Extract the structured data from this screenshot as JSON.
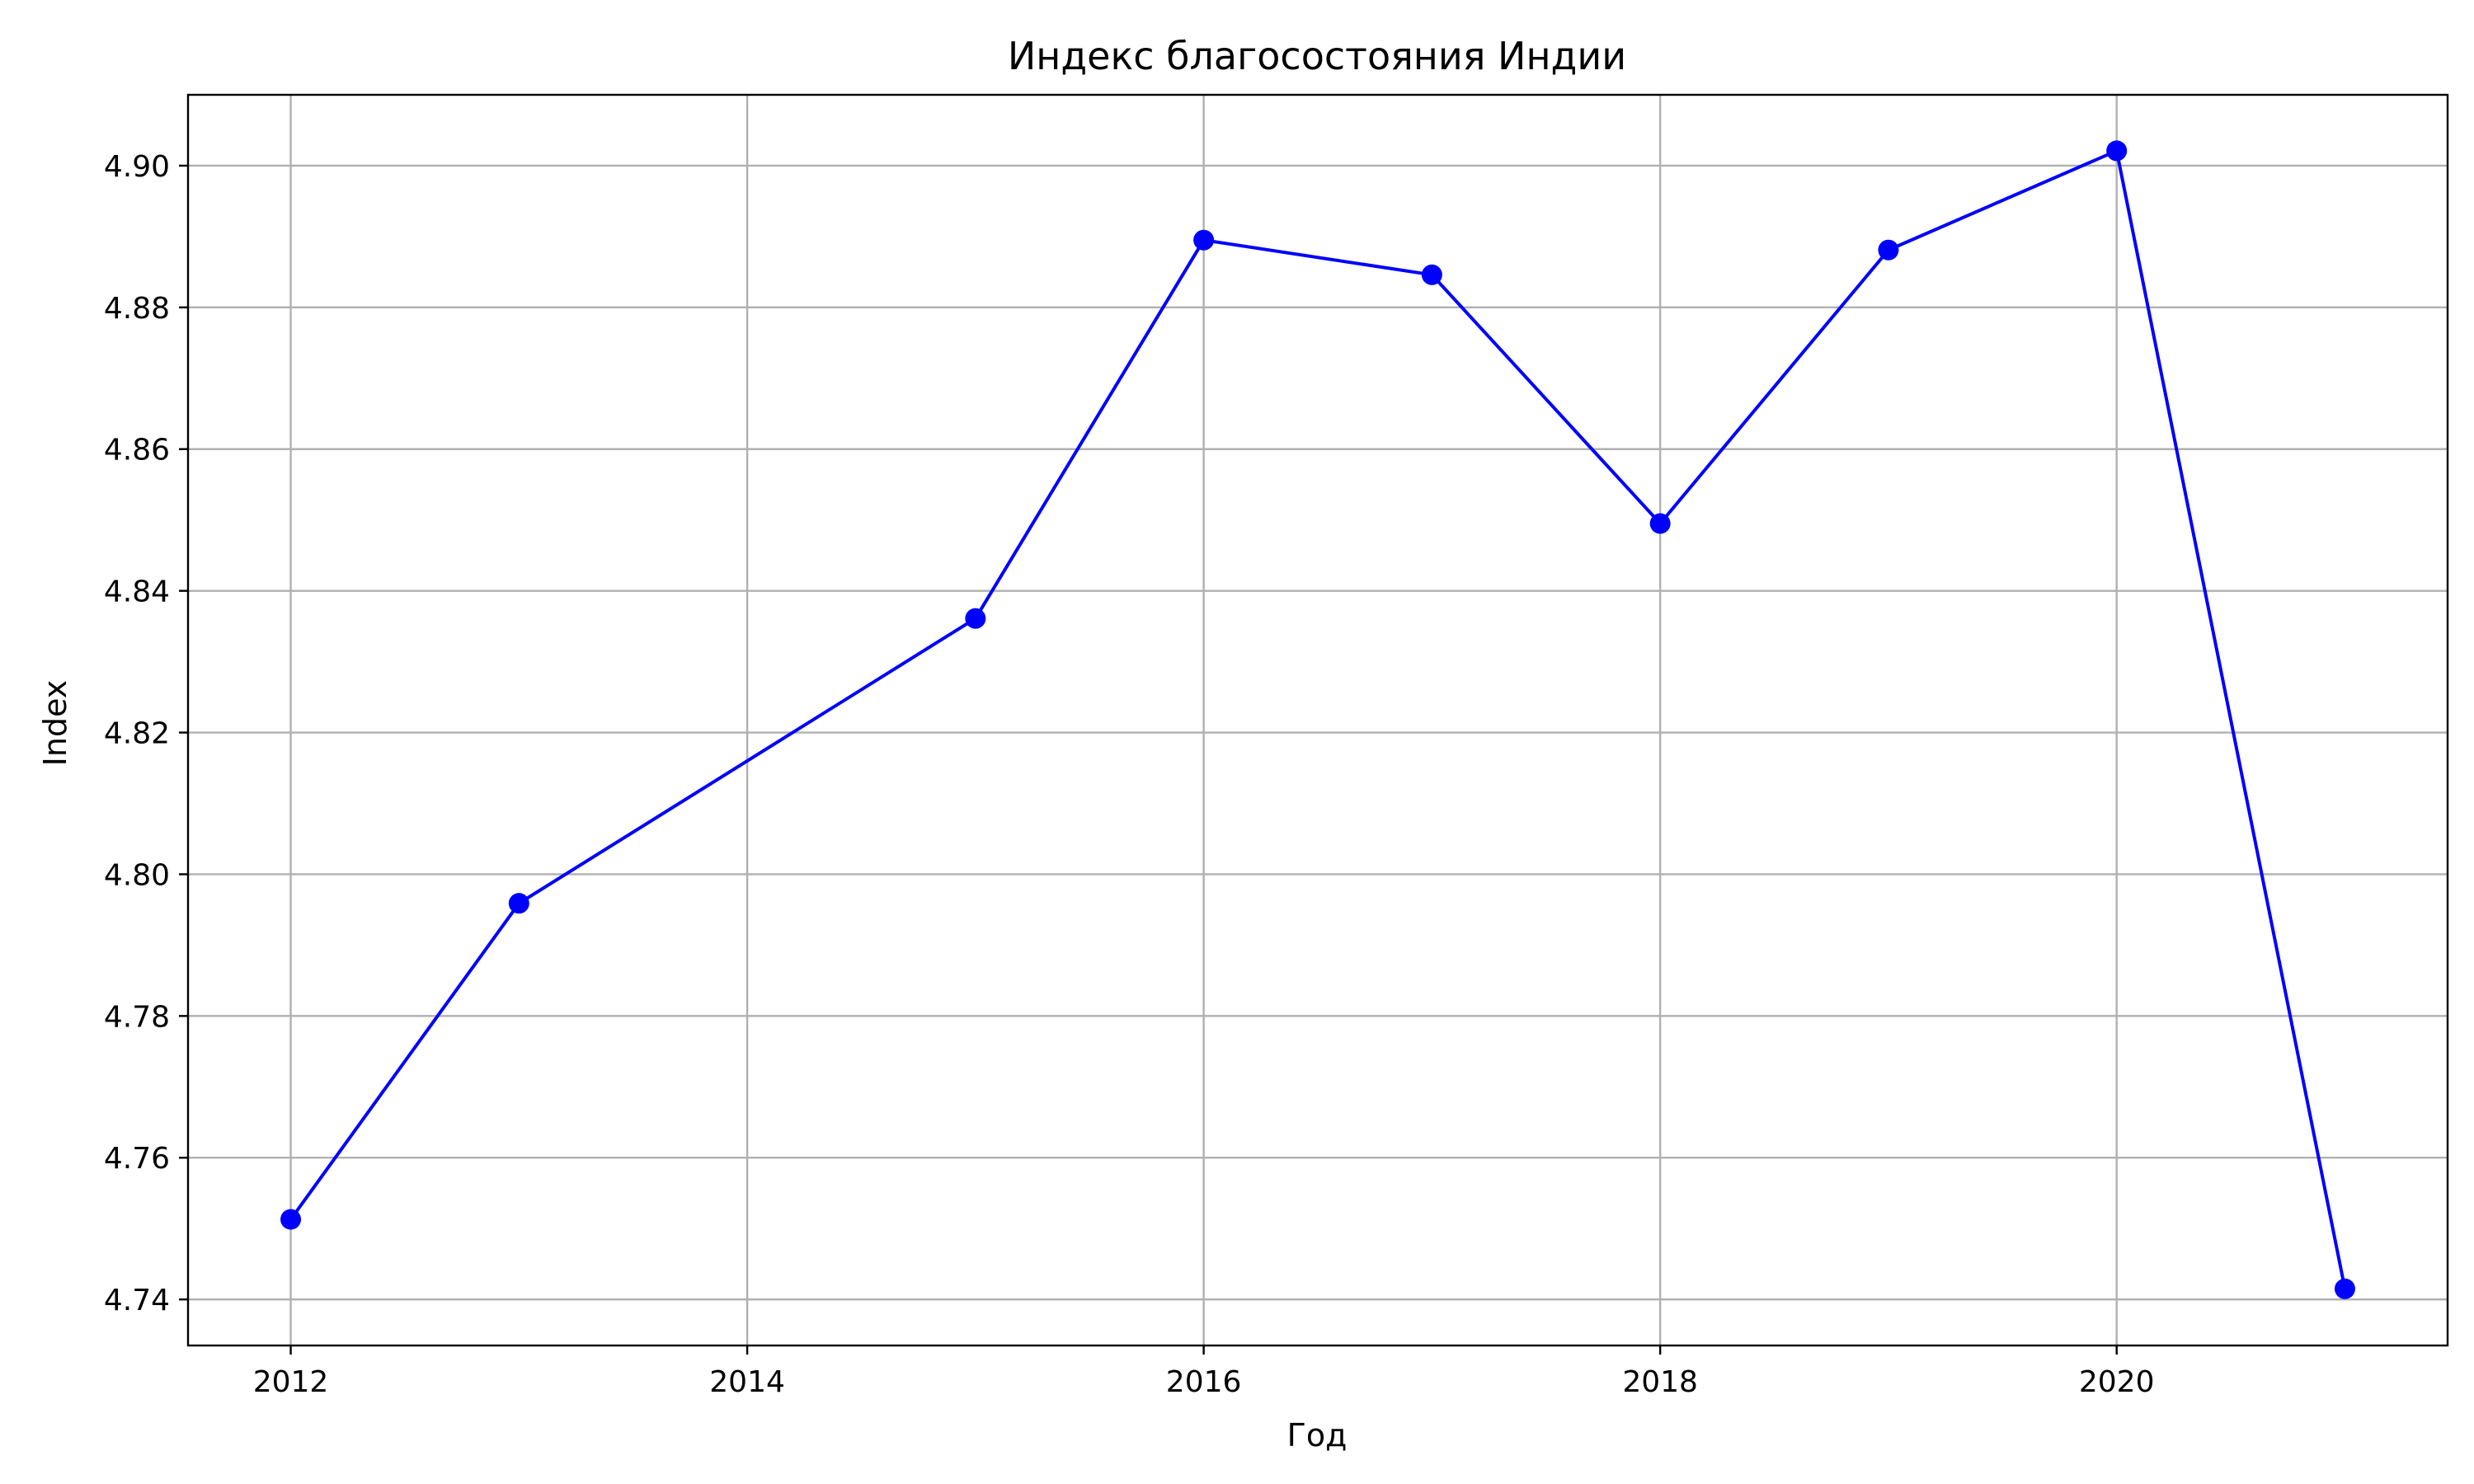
{
  "chart_data": {
    "type": "line",
    "title": "Индекс благосостояния Индии",
    "xlabel": "Год",
    "ylabel": "Index",
    "x": [
      2012,
      2013,
      2015,
      2016,
      2017,
      2018,
      2019,
      2020,
      2021
    ],
    "series": [
      {
        "values": [
          4.7513,
          4.7959,
          4.8361,
          4.8895,
          4.8846,
          4.8495,
          4.8881,
          4.9021,
          4.7415
        ],
        "color": "#0000ff",
        "marker": "circle"
      }
    ],
    "xlim": [
      2011.55,
      2021.45
    ],
    "ylim": [
      4.7335,
      4.91
    ],
    "x_ticks": [
      "2012",
      "2014",
      "2016",
      "2018",
      "2020"
    ],
    "y_ticks": [
      "4.74",
      "4.76",
      "4.78",
      "4.80",
      "4.82",
      "4.84",
      "4.86",
      "4.88",
      "4.90"
    ],
    "grid": true,
    "grid_color": "#b0b0b0",
    "axis_color": "#000000",
    "legend": "none"
  }
}
